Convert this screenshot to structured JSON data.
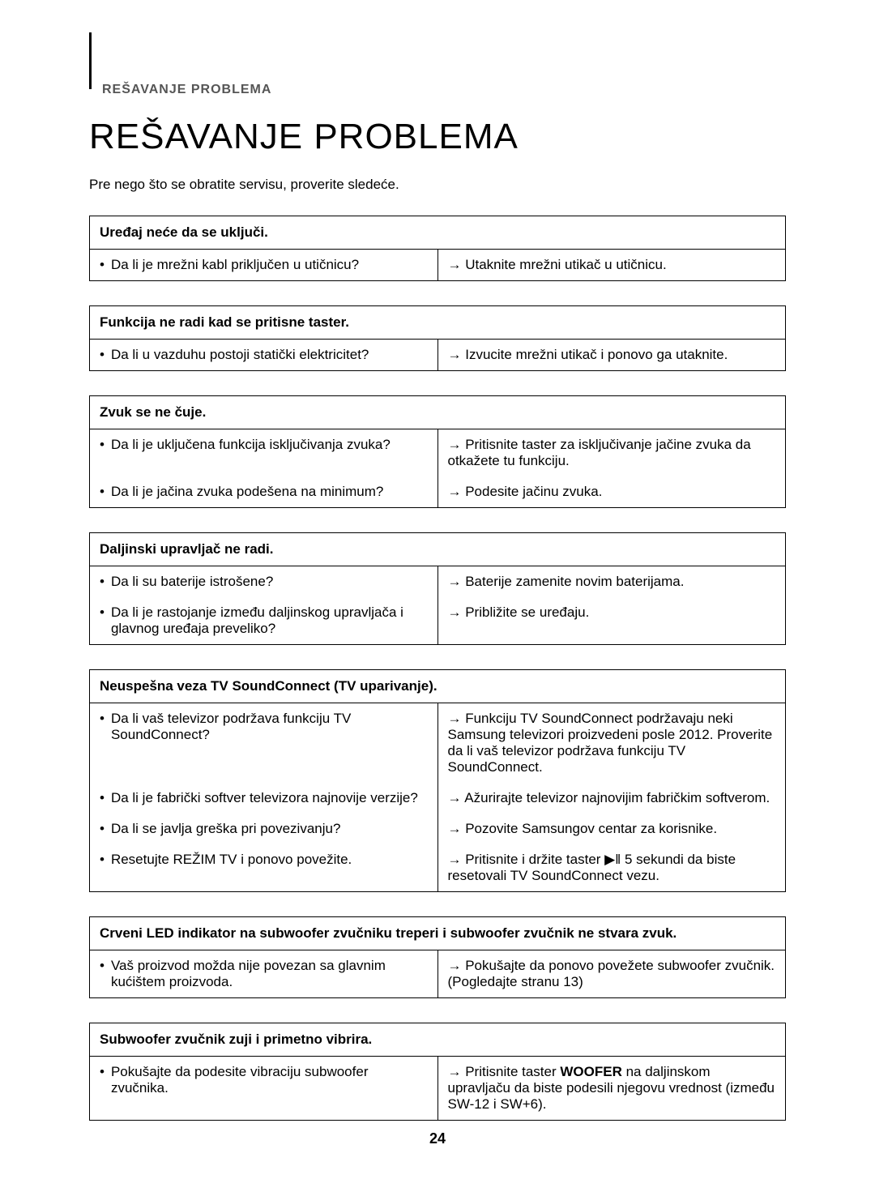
{
  "colors": {
    "text": "#000000",
    "label": "#555555",
    "border": "#000000",
    "background": "#ffffff"
  },
  "typography": {
    "body_fontsize_pt": 13,
    "title_fontsize_pt": 33,
    "label_fontsize_pt": 12,
    "font_family": "Arial"
  },
  "header": {
    "section_label": "REŠAVANJE PROBLEMA",
    "title": "REŠAVANJE PROBLEMA",
    "intro": "Pre nego što se obratite servisu, proverite sledeće."
  },
  "tables": [
    {
      "heading": "Uređaj neće da se uključi.",
      "rows": [
        {
          "q": "Da li je mrežni kabl priključen u utičnicu?",
          "a": "→ Utaknite mrežni utikač u utičnicu."
        }
      ]
    },
    {
      "heading": "Funkcija ne radi kad se pritisne taster.",
      "rows": [
        {
          "q": "Da li u vazduhu postoji statički elektricitet?",
          "a": "→ Izvucite mrežni utikač i ponovo ga utaknite."
        }
      ]
    },
    {
      "heading": "Zvuk se ne čuje.",
      "rows": [
        {
          "q": "Da li je uključena funkcija isključivanja zvuka?",
          "a": "→ Pritisnite taster za isključivanje jačine zvuka da otkažete tu funkciju."
        },
        {
          "q": "Da li je jačina zvuka podešena na minimum?",
          "a": "→ Podesite jačinu zvuka."
        }
      ]
    },
    {
      "heading": "Daljinski upravljač ne radi.",
      "rows": [
        {
          "q": "Da li su baterije istrošene?",
          "a": "→ Baterije zamenite novim baterijama."
        },
        {
          "q": "Da li je rastojanje između daljinskog upravljača i glavnog uređaja preveliko?",
          "a": "→ Približite se uređaju."
        }
      ]
    },
    {
      "heading": "Neuspešna veza TV SoundConnect (TV uparivanje).",
      "rows": [
        {
          "q": "Da li vaš televizor podržava funkciju TV SoundConnect?",
          "a": "→ Funkciju TV SoundConnect podržavaju neki Samsung televizori proizvedeni posle 2012. Proverite da li vaš televizor podržava funkciju TV SoundConnect."
        },
        {
          "q": "Da li je fabrički softver televizora najnovije verzije?",
          "a": "→ Ažurirajte televizor najnovijim fabričkim softverom."
        },
        {
          "q": "Da li se javlja greška pri povezivanju?",
          "a": "→ Pozovite Samsungov centar za korisnike."
        },
        {
          "q": "Resetujte REŽIM TV i ponovo povežite.",
          "a": "→ Pritisnite i držite taster ▶ǁ 5 sekundi da biste resetovali TV SoundConnect vezu."
        }
      ]
    },
    {
      "heading": "Crveni LED indikator na subwoofer zvučniku treperi i subwoofer zvučnik ne stvara zvuk.",
      "rows": [
        {
          "q": "Vaš proizvod možda nije povezan sa glavnim kućištem proizvoda.",
          "a": "→ Pokušajte da ponovo povežete subwoofer zvučnik. (Pogledajte stranu 13)"
        }
      ]
    },
    {
      "heading": "Subwoofer zvučnik zuji i primetno vibrira.",
      "rows": [
        {
          "q": "Pokušajte da podesite vibraciju subwoofer zvučnika.",
          "a": "→ Pritisnite taster WOOFER na daljinskom upravljaču da biste podesili njegovu vrednost (između SW-12 i SW+6)."
        }
      ]
    }
  ],
  "page_number": "24"
}
